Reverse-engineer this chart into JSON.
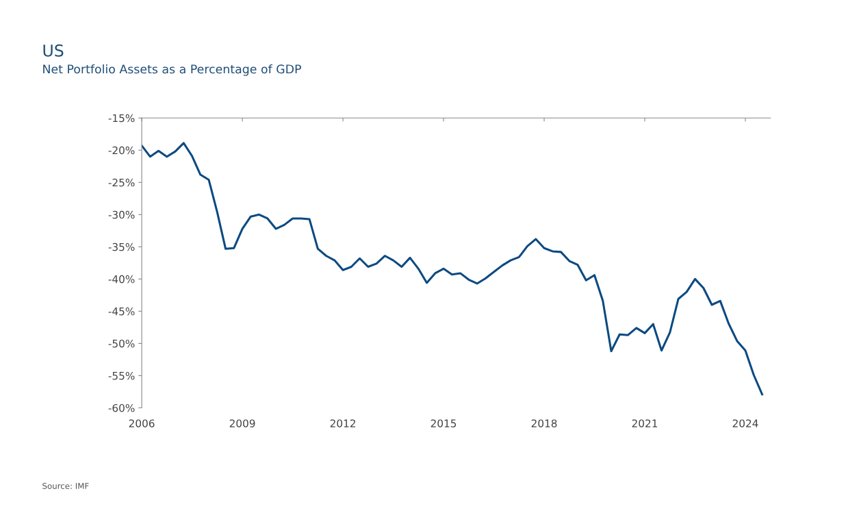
{
  "chart_data": {
    "type": "line",
    "title": "US",
    "subtitle": "Net Portfolio Assets as a Percentage of GDP",
    "x": [
      2006.0,
      2006.25,
      2006.5,
      2006.75,
      2007.0,
      2007.25,
      2007.5,
      2007.75,
      2008.0,
      2008.25,
      2008.5,
      2008.75,
      2009.0,
      2009.25,
      2009.5,
      2009.75,
      2010.0,
      2010.25,
      2010.5,
      2010.75,
      2011.0,
      2011.25,
      2011.5,
      2011.75,
      2012.0,
      2012.25,
      2012.5,
      2012.75,
      2013.0,
      2013.25,
      2013.5,
      2013.75,
      2014.0,
      2014.25,
      2014.5,
      2014.75,
      2015.0,
      2015.25,
      2015.5,
      2015.75,
      2016.0,
      2016.25,
      2016.5,
      2016.75,
      2017.0,
      2017.25,
      2017.5,
      2017.75,
      2018.0,
      2018.25,
      2018.5,
      2018.75,
      2019.0,
      2019.25,
      2019.5,
      2019.75,
      2020.0,
      2020.25,
      2020.5,
      2020.75,
      2021.0,
      2021.25,
      2021.5,
      2021.75,
      2022.0,
      2022.25,
      2022.5,
      2022.75,
      2023.0,
      2023.25,
      2023.5,
      2023.75,
      2024.0,
      2024.25,
      2024.5
    ],
    "series": [
      {
        "color": "#0b4a82",
        "values": [
          -19.3,
          -21.0,
          -20.1,
          -21.0,
          -20.2,
          -18.9,
          -20.9,
          -23.8,
          -24.6,
          -29.6,
          -35.3,
          -35.2,
          -32.2,
          -30.3,
          -30.0,
          -30.6,
          -32.2,
          -31.6,
          -30.6,
          -30.6,
          -30.7,
          -35.3,
          -36.4,
          -37.1,
          -38.6,
          -38.1,
          -36.8,
          -38.1,
          -37.6,
          -36.4,
          -37.1,
          -38.1,
          -36.7,
          -38.4,
          -40.6,
          -39.1,
          -38.4,
          -39.3,
          -39.1,
          -40.1,
          -40.7,
          -39.9,
          -38.9,
          -37.9,
          -37.1,
          -36.6,
          -34.9,
          -33.8,
          -35.2,
          -35.7,
          -35.8,
          -37.2,
          -37.8,
          -40.2,
          -39.4,
          -43.4,
          -51.2,
          -48.6,
          -48.7,
          -47.6,
          -48.4,
          -47.0,
          -51.1,
          -48.3,
          -43.1,
          -42.0,
          -40.0,
          -41.4,
          -44.0,
          -43.4,
          -46.9,
          -49.6,
          -51.1,
          -54.9,
          -57.9
        ]
      }
    ],
    "xlim": [
      2006,
      2024.75
    ],
    "xticks": [
      2006,
      2009,
      2012,
      2015,
      2018,
      2021,
      2024
    ],
    "ylim": [
      -60,
      -15
    ],
    "yticks": [
      {
        "value": -60,
        "label": "-60%"
      },
      {
        "value": -55,
        "label": "-55%"
      },
      {
        "value": -50,
        "label": "-50%"
      },
      {
        "value": -45,
        "label": "-45%"
      },
      {
        "value": -40,
        "label": "-40%"
      },
      {
        "value": -35,
        "label": "-35%"
      },
      {
        "value": -30,
        "label": "-30%"
      },
      {
        "value": -25,
        "label": "-25%"
      },
      {
        "value": -20,
        "label": "-20%"
      },
      {
        "value": -15,
        "label": "-15%"
      }
    ],
    "grid": false,
    "legend": false,
    "marker": "none",
    "line_style": "solid",
    "annotations": [
      "Source: IMF"
    ]
  }
}
